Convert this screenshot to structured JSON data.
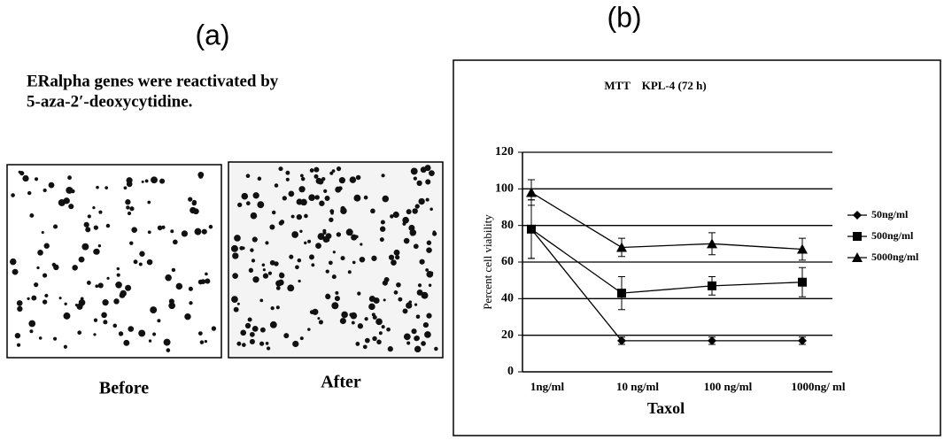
{
  "panel_a": {
    "label": "(a)",
    "caption": [
      "ERalpha genes were reactivated by",
      "5-aza-2′-deoxycytidine."
    ],
    "images": [
      "Before",
      "After"
    ]
  },
  "panel_b": {
    "label": "(b)"
  },
  "chart_data": {
    "type": "line",
    "title": "MTT    KPL-4 (72 h)",
    "categories": [
      "1ng/ml",
      "10 ng/ml",
      "100 ng/ml",
      "1000ng/ ml"
    ],
    "x_label": "Taxol",
    "y_label": "Percent cell viability",
    "ylim": [
      0,
      120
    ],
    "yticks": [
      0,
      20,
      40,
      60,
      80,
      100,
      120
    ],
    "grid": true,
    "legend": "right",
    "series": [
      {
        "name": "50ng/ml",
        "color": "#000000",
        "marker": "diamond",
        "values": [
          78,
          17,
          17,
          17
        ],
        "errors": [
          16,
          2,
          2,
          2
        ]
      },
      {
        "name": "500ng/ml",
        "color": "#000000",
        "marker": "square",
        "values": [
          78,
          43,
          47,
          49
        ],
        "errors": [
          16,
          9,
          5,
          8
        ]
      },
      {
        "name": "5000ng/ml",
        "color": "#000000",
        "marker": "triangle",
        "values": [
          98,
          68,
          70,
          67
        ],
        "errors": [
          7,
          5,
          6,
          6
        ]
      }
    ]
  }
}
